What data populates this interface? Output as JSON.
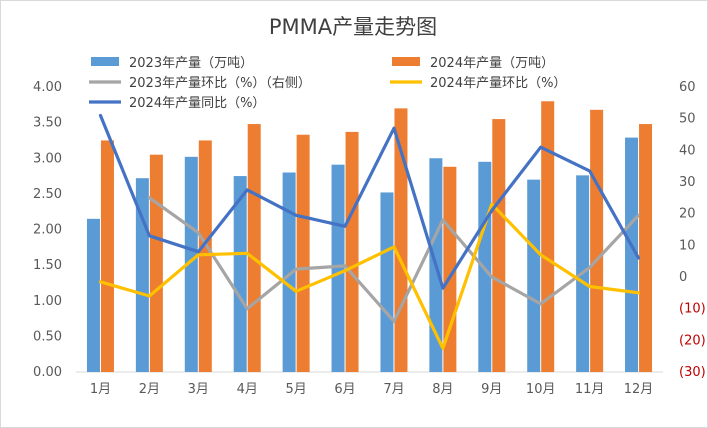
{
  "chart_data": {
    "type": "bar+line",
    "title": "PMMA产量走势图",
    "categories": [
      "1月",
      "2月",
      "3月",
      "4月",
      "5月",
      "6月",
      "7月",
      "8月",
      "9月",
      "10月",
      "11月",
      "12月"
    ],
    "y_left": {
      "min": 0,
      "max": 4,
      "step": 0.5,
      "tick_labels": [
        "0.00",
        "0.50",
        "1.00",
        "1.50",
        "2.00",
        "2.50",
        "3.00",
        "3.50",
        "4.00"
      ]
    },
    "y_right": {
      "min": -30,
      "max": 60,
      "step": 10,
      "tick_labels": [
        "(30)",
        "(20)",
        "(10)",
        "0",
        "10",
        "20",
        "30",
        "40",
        "50",
        "60"
      ]
    },
    "series": [
      {
        "name": "2023年产量（万吨）",
        "kind": "bar",
        "axis": "left",
        "color": "#5b9bd5",
        "values": [
          2.15,
          2.72,
          3.02,
          2.75,
          2.8,
          2.91,
          2.52,
          3.0,
          2.95,
          2.7,
          2.76,
          3.29
        ]
      },
      {
        "name": "2024年产量（万吨）",
        "kind": "bar",
        "axis": "left",
        "color": "#ed7d31",
        "values": [
          3.25,
          3.05,
          3.25,
          3.48,
          3.33,
          3.37,
          3.7,
          2.88,
          3.55,
          3.8,
          3.68,
          3.48
        ]
      },
      {
        "name": "2023年产量环比（%）（右侧）",
        "kind": "line",
        "axis": "right",
        "color": "#a5a5a5",
        "values": [
          null,
          25,
          14,
          -10,
          2.5,
          3.5,
          -14,
          18,
          0,
          -8.5,
          3,
          19.5
        ]
      },
      {
        "name": "2024年产量环比（%）",
        "kind": "line",
        "axis": "right",
        "color": "#ffc000",
        "values": [
          -1.5,
          -6,
          7,
          7.5,
          -4.5,
          2,
          9.5,
          -22.5,
          23,
          7,
          -3,
          -5
        ]
      },
      {
        "name": "2024年产量同比（%）",
        "kind": "line",
        "axis": "right",
        "color": "#4472c4",
        "values": [
          51,
          13,
          8,
          27.5,
          19.5,
          16,
          47,
          -3.5,
          21,
          41,
          33.5,
          6
        ]
      }
    ],
    "grid": false,
    "legend_position": "top"
  }
}
